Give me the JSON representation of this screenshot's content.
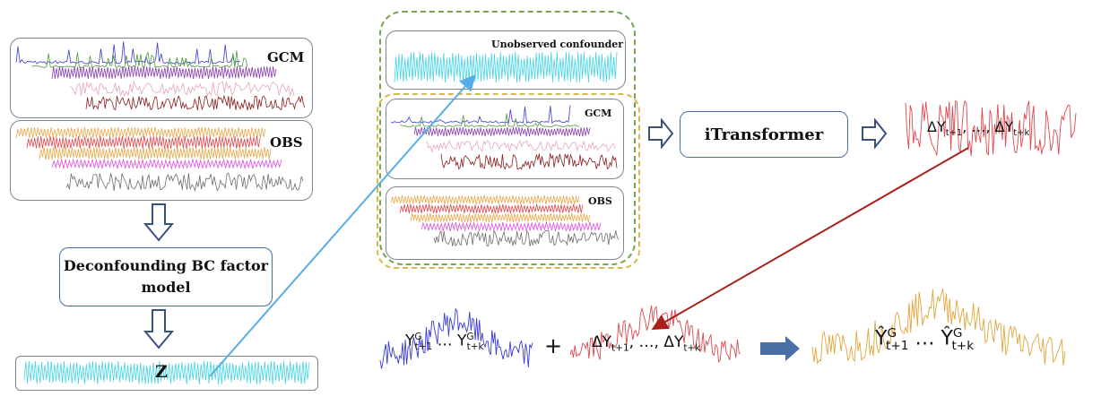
{
  "labels": {
    "gcm": "GCM",
    "obs": "OBS",
    "deconfounding": "Deconfounding BC factor model",
    "z": "Z",
    "unobserved": "Unobserved confounder",
    "gcm_inner": "GCM",
    "obs_inner": "OBS",
    "itransformer": "iTransformer",
    "plus": "+"
  },
  "equations": {
    "delta_top": {
      "prefix": "ΔY",
      "sub1": "t+1",
      "mid": ", …, ΔY",
      "sub2": "t+k"
    },
    "y_g": {
      "pre": "Y",
      "sup1": "G",
      "sub1": "t+1",
      "mid": " … Y",
      "sup2": "G",
      "sub2": "t+k"
    },
    "delta_bottom": {
      "prefix": "ΔY",
      "sub1": "t+1",
      "mid": ", …, ΔY",
      "sub2": "t+k"
    },
    "y_hat": {
      "pre": "Ŷ",
      "sup1": "G",
      "sub1": "t+1",
      "mid": " … Ŷ",
      "sup2": "G",
      "sub2": "t+k"
    }
  },
  "colors": {
    "blue_series": "#3a3ad8",
    "green_series": "#4e9a3c",
    "purple_series": "#8a3fb0",
    "pink_series": "#e9a6b6",
    "maroon_series": "#8b1a1a",
    "orange_series": "#e8a84a",
    "red_series": "#e0474c",
    "magenta_series": "#e050e0",
    "gray_series": "#6d6d6d",
    "cyan_series": "#43d5e6",
    "yellow_series": "#e2a63a",
    "green_dashed": "#77a44d",
    "yellow_dashed": "#d9b84a",
    "blue_arrow": "#56aee6",
    "red_arrow": "#a8201a",
    "flow_arrow": "#3a5180",
    "block_arrow": "#4a6ea6"
  }
}
